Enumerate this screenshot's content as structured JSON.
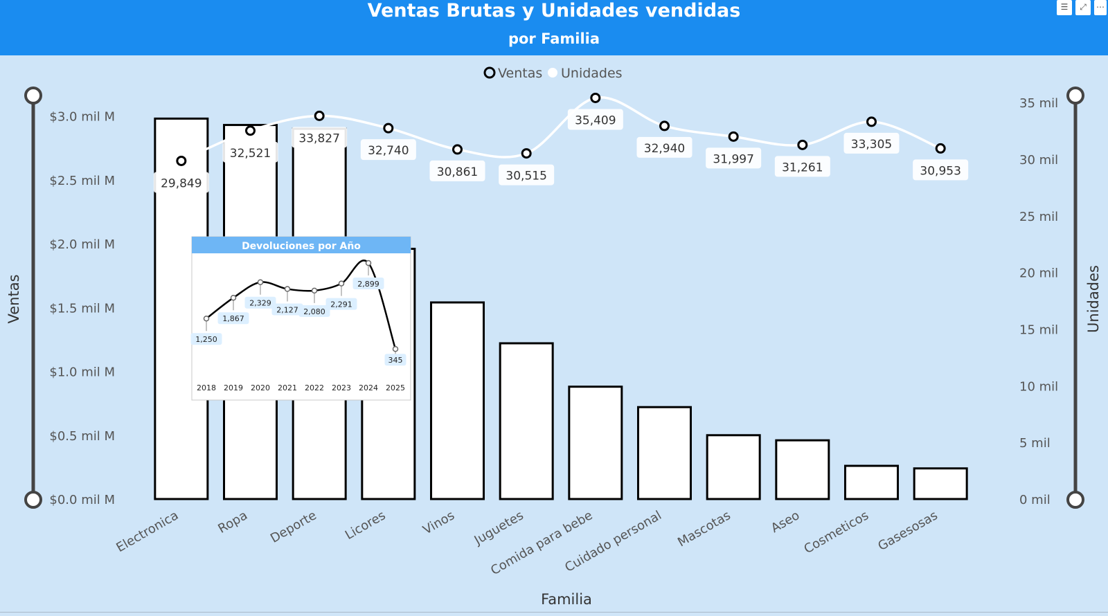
{
  "header": {
    "title": "Ventas Brutas y Unidades vendidas",
    "subtitle": "por Familia"
  },
  "toolbar": [
    {
      "name": "filter-icon",
      "glyph": "☰"
    },
    {
      "name": "focus-mode-icon",
      "glyph": "⤢"
    },
    {
      "name": "more-options-icon",
      "glyph": "⋯"
    }
  ],
  "colors": {
    "header": "#1a8cf0",
    "background": "#cfe5f8",
    "bars": "#ffffff",
    "bar_outline": "#000000",
    "units_line": "#ffffff",
    "inset_header": "#6eb6f5",
    "label_box": "#dcefff"
  },
  "chart_data": [
    {
      "type": "bar",
      "title": "Ventas Brutas y Unidades vendidas",
      "subtitle": "por Familia",
      "xlabel": "Familia",
      "ylabel": "Ventas",
      "y2label": "Unidades",
      "legend": {
        "position": "top-center",
        "entries": [
          "Ventas",
          "Unidades"
        ]
      },
      "categories": [
        "Electronica",
        "Ropa",
        "Deporte",
        "Licores",
        "Vinos",
        "Juguetes",
        "Comida para bebe",
        "Cuidado personal",
        "Mascotas",
        "Aseo",
        "Cosmeticos",
        "Gasesosas"
      ],
      "y_ticks": [
        "$0.0 mil M",
        "$0.5 mil M",
        "$1.0 mil M",
        "$1.5 mil M",
        "$2.0 mil M",
        "$2.5 mil M",
        "$3.0 mil M"
      ],
      "y2_ticks": [
        "0 mil",
        "5 mil",
        "10 mil",
        "15 mil",
        "20 mil",
        "25 mil",
        "30 mil",
        "35 mil"
      ],
      "ylim": [
        0,
        3.15
      ],
      "y2lim": [
        0,
        35.5
      ],
      "series": [
        {
          "name": "Ventas",
          "type": "bar",
          "axis": "left",
          "unit": "mil M",
          "values": [
            2.98,
            2.93,
            2.9,
            1.96,
            1.54,
            1.22,
            0.88,
            0.72,
            0.5,
            0.46,
            0.26,
            0.24
          ]
        },
        {
          "name": "Unidades",
          "type": "line",
          "axis": "right",
          "values": [
            29849,
            32521,
            33827,
            32740,
            30861,
            30515,
            35409,
            32940,
            31997,
            31261,
            33305,
            30953
          ],
          "labels": [
            "29,849",
            "32,521",
            "33,827",
            "32,740",
            "30,861",
            "30,515",
            "35,409",
            "32,940",
            "31,997",
            "31,261",
            "33,305",
            "30,953"
          ]
        }
      ]
    },
    {
      "type": "line",
      "title": "Devoluciones por Año",
      "x": [
        "2018",
        "2019",
        "2020",
        "2021",
        "2022",
        "2023",
        "2024",
        "2025"
      ],
      "series": [
        {
          "values": [
            1250,
            1867,
            2329,
            2127,
            2080,
            2291,
            2899,
            345
          ],
          "labels": [
            "1,250",
            "1,867",
            "2,329",
            "2,127",
            "2,080",
            "2,291",
            "2,899",
            "345"
          ]
        }
      ]
    }
  ]
}
